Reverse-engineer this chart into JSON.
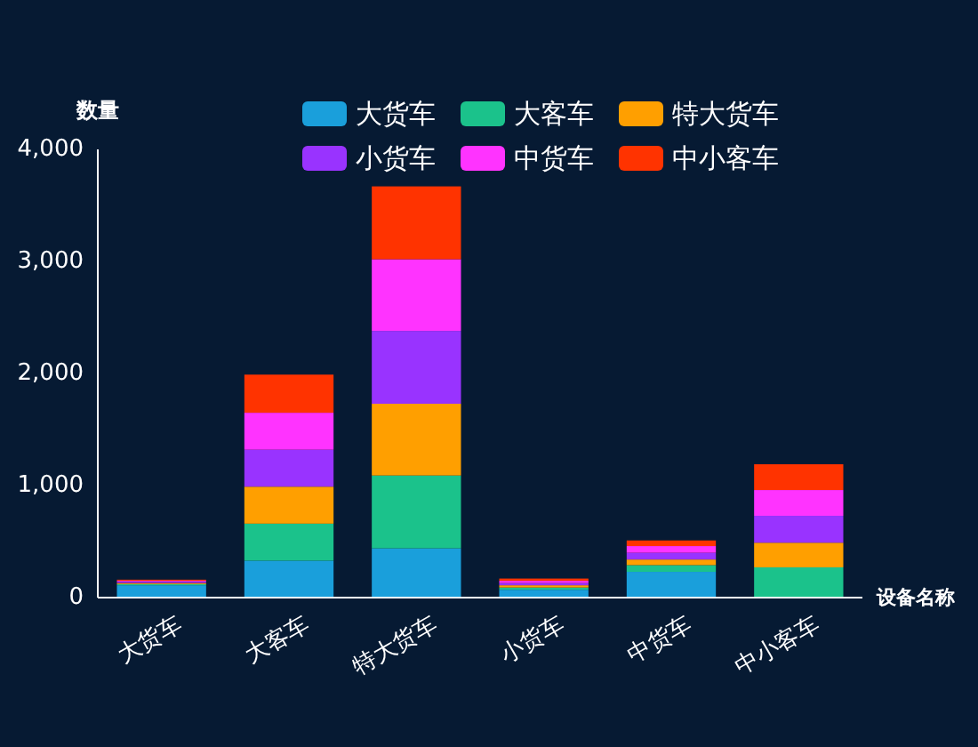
{
  "chart_data": {
    "type": "bar",
    "stacked": true,
    "xlabel": "设备名称",
    "ylabel": "数量",
    "categories": [
      "大货车",
      "大客车",
      "特大货车",
      "小货车",
      "中货车",
      "中小客车"
    ],
    "series": [
      {
        "name": "大货车",
        "color": "#1a9fdb",
        "values": [
          110,
          330,
          440,
          70,
          230,
          0
        ]
      },
      {
        "name": "大客车",
        "color": "#1bc28b",
        "values": [
          10,
          330,
          650,
          20,
          60,
          270
        ]
      },
      {
        "name": "特大货车",
        "color": "#ff9f00",
        "values": [
          10,
          330,
          640,
          20,
          50,
          220
        ]
      },
      {
        "name": "小货车",
        "color": "#9933ff",
        "values": [
          10,
          330,
          650,
          20,
          60,
          240
        ]
      },
      {
        "name": "中货车",
        "color": "#ff33ff",
        "values": [
          10,
          330,
          640,
          20,
          60,
          230
        ]
      },
      {
        "name": "中小客车",
        "color": "#ff3300",
        "values": [
          10,
          340,
          650,
          20,
          50,
          230
        ]
      }
    ],
    "ylim": [
      0,
      4000
    ],
    "yticks": [
      {
        "value": 0,
        "label": "0"
      },
      {
        "value": 1000,
        "label": "1,000"
      },
      {
        "value": 2000,
        "label": "2,000"
      },
      {
        "value": 3000,
        "label": "3,000"
      },
      {
        "value": 4000,
        "label": "4,000"
      }
    ],
    "grid": false,
    "legend": "top"
  }
}
